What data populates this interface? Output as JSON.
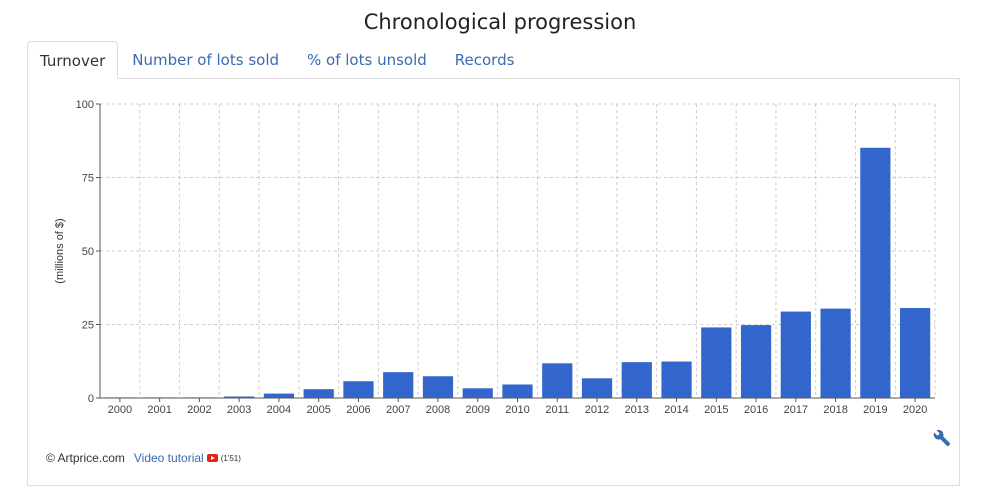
{
  "header": {
    "title": "Chronological progression"
  },
  "tabs": [
    {
      "label": "Turnover",
      "active": true
    },
    {
      "label": "Number of lots sold",
      "active": false
    },
    {
      "label": "% of lots unsold",
      "active": false
    },
    {
      "label": "Records",
      "active": false
    }
  ],
  "footer": {
    "copyright": "© Artprice.com",
    "video_label": "Video tutorial",
    "video_icon": "youtube-icon",
    "duration": "(1'51)",
    "tools_icon": "wrench-icon"
  },
  "colors": {
    "bar": "#3366cc",
    "link": "#3a6bb0",
    "grid": "#cccccc"
  },
  "chart_data": {
    "type": "bar",
    "title": "",
    "xlabel": "",
    "ylabel": "(millions of $)",
    "ylim": [
      0,
      100
    ],
    "yticks": [
      0,
      25,
      50,
      75,
      100
    ],
    "grid": true,
    "categories": [
      "2000",
      "2001",
      "2002",
      "2003",
      "2004",
      "2005",
      "2006",
      "2007",
      "2008",
      "2009",
      "2010",
      "2011",
      "2012",
      "2013",
      "2014",
      "2015",
      "2016",
      "2017",
      "2018",
      "2019",
      "2020"
    ],
    "values": [
      0.1,
      0.1,
      0.2,
      0.5,
      1.5,
      3.0,
      5.7,
      8.8,
      7.4,
      3.3,
      4.6,
      11.8,
      6.7,
      12.2,
      12.4,
      24.0,
      24.8,
      29.4,
      30.4,
      85.1,
      30.6
    ]
  }
}
